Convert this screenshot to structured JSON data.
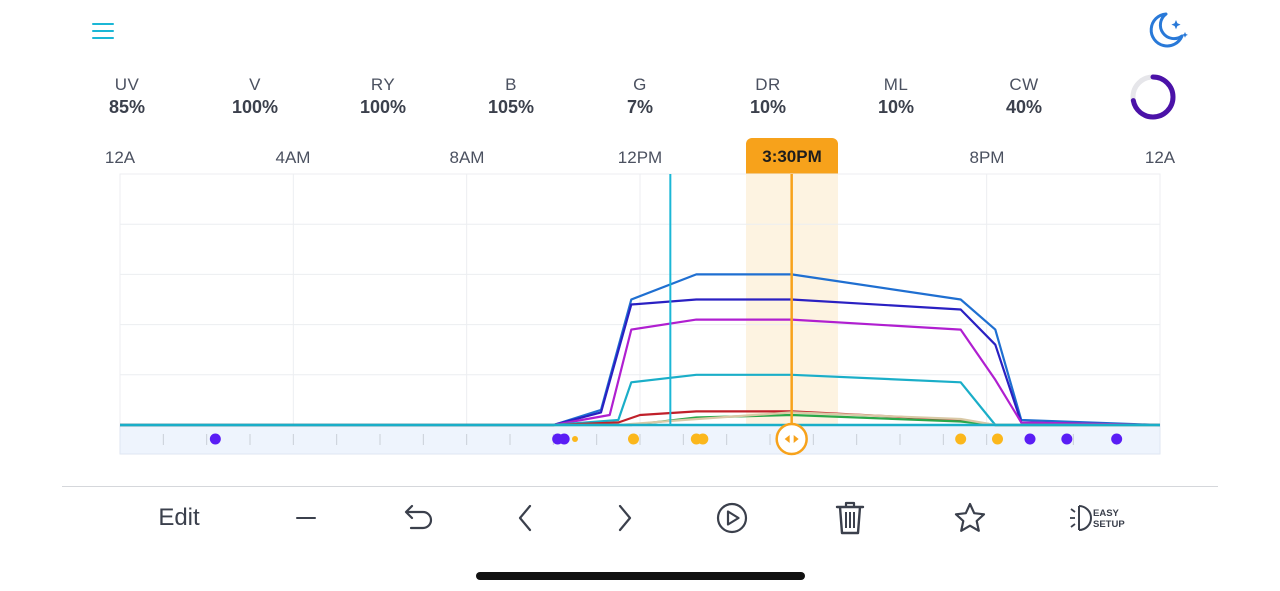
{
  "header": {
    "menu_icon": "hamburger-menu-icon",
    "night_mode_icon": "moon-stars-icon"
  },
  "channels": [
    {
      "name": "UV",
      "value": "85%"
    },
    {
      "name": "V",
      "value": "100%"
    },
    {
      "name": "RY",
      "value": "100%"
    },
    {
      "name": "B",
      "value": "105%"
    },
    {
      "name": "G",
      "value": "7%"
    },
    {
      "name": "DR",
      "value": "10%"
    },
    {
      "name": "ML",
      "value": "10%"
    },
    {
      "name": "CW",
      "value": "40%"
    }
  ],
  "intensity_ring": {
    "fraction": 0.72,
    "color": "#4b12a8"
  },
  "timeline": {
    "tick_labels": [
      "12A",
      "4AM",
      "8AM",
      "12PM",
      "8PM",
      "12A"
    ],
    "selected_time": "3:30PM"
  },
  "colors": {
    "accent_orange": "#f7a21b",
    "accent_teal": "#1bb7d6",
    "night_blue": "#2979d8",
    "night_dot": "#5a1df5",
    "day_dot": "#fbb71c"
  },
  "chart_data": {
    "type": "line",
    "x_unit": "hour",
    "xlim": [
      0,
      24
    ],
    "ylim": [
      0,
      5
    ],
    "grid": true,
    "x_ticks": [
      0,
      4,
      8,
      12,
      20,
      24
    ],
    "current_time_hour": 12.7,
    "selected_hour": 15.5,
    "series": [
      {
        "color": "#1f6fd1",
        "points": [
          [
            0,
            0
          ],
          [
            10,
            0
          ],
          [
            11.1,
            0.3
          ],
          [
            11.8,
            2.5
          ],
          [
            13.3,
            3.0
          ],
          [
            15.5,
            3.0
          ],
          [
            19.4,
            2.5
          ],
          [
            20.2,
            1.9
          ],
          [
            20.8,
            0.1
          ],
          [
            24,
            0
          ]
        ]
      },
      {
        "color": "#2a20c2",
        "points": [
          [
            0,
            0
          ],
          [
            10,
            0
          ],
          [
            11.1,
            0.25
          ],
          [
            11.8,
            2.4
          ],
          [
            13.3,
            2.5
          ],
          [
            15.5,
            2.5
          ],
          [
            19.4,
            2.3
          ],
          [
            20.2,
            1.6
          ],
          [
            20.8,
            0.05
          ],
          [
            24,
            0
          ]
        ]
      },
      {
        "color": "#b01fd0",
        "points": [
          [
            0,
            0
          ],
          [
            10,
            0
          ],
          [
            11.3,
            0.2
          ],
          [
            11.8,
            1.9
          ],
          [
            13.3,
            2.1
          ],
          [
            15.5,
            2.1
          ],
          [
            19.4,
            1.9
          ],
          [
            20.2,
            0.9
          ],
          [
            20.8,
            0.05
          ],
          [
            24,
            0
          ]
        ]
      },
      {
        "color": "#1aaec8",
        "points": [
          [
            0,
            0
          ],
          [
            10,
            0
          ],
          [
            11.5,
            0.1
          ],
          [
            11.8,
            0.85
          ],
          [
            13.3,
            1.0
          ],
          [
            15.5,
            1.0
          ],
          [
            19.4,
            0.85
          ],
          [
            20.2,
            0
          ],
          [
            24,
            0
          ]
        ]
      },
      {
        "color": "#c0202a",
        "points": [
          [
            0,
            0
          ],
          [
            10,
            0
          ],
          [
            11.5,
            0.05
          ],
          [
            12,
            0.2
          ],
          [
            13.3,
            0.27
          ],
          [
            15.5,
            0.27
          ],
          [
            19.4,
            0.1
          ],
          [
            20.2,
            0
          ],
          [
            24,
            0
          ]
        ]
      },
      {
        "color": "#2aa84a",
        "points": [
          [
            0,
            0
          ],
          [
            11.8,
            0
          ],
          [
            13.3,
            0.15
          ],
          [
            15.5,
            0.2
          ],
          [
            19.4,
            0.07
          ],
          [
            20.2,
            0
          ],
          [
            24,
            0
          ]
        ]
      },
      {
        "color": "#d9c9a6",
        "points": [
          [
            0,
            0
          ],
          [
            11.5,
            0
          ],
          [
            13,
            0.1
          ],
          [
            15.5,
            0.25
          ],
          [
            19.4,
            0.12
          ],
          [
            20.2,
            0
          ],
          [
            24,
            0
          ]
        ]
      }
    ],
    "markers": [
      {
        "hour": 2.2,
        "kind": "night"
      },
      {
        "hour": 10.1,
        "kind": "night"
      },
      {
        "hour": 10.25,
        "kind": "night"
      },
      {
        "hour": 10.5,
        "kind": "day-small"
      },
      {
        "hour": 11.85,
        "kind": "day"
      },
      {
        "hour": 13.3,
        "kind": "day"
      },
      {
        "hour": 13.45,
        "kind": "day"
      },
      {
        "hour": 19.4,
        "kind": "day"
      },
      {
        "hour": 20.25,
        "kind": "day"
      },
      {
        "hour": 21.0,
        "kind": "night"
      },
      {
        "hour": 21.85,
        "kind": "night"
      },
      {
        "hour": 23.0,
        "kind": "night"
      }
    ]
  },
  "toolbar": {
    "edit_label": "Edit",
    "easy_setup_line1": "EASY",
    "easy_setup_line2": "SETUP"
  }
}
